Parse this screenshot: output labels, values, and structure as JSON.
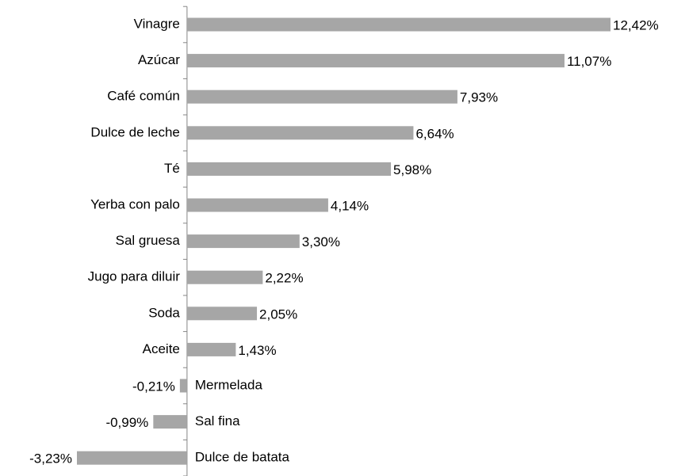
{
  "chart_data": {
    "type": "bar",
    "orientation": "horizontal",
    "color": "#a6a6a6",
    "categories": [
      "Vinagre",
      "Azúcar",
      "Café común",
      "Dulce de leche",
      "Té",
      "Yerba con palo",
      "Sal gruesa",
      "Jugo para diluir",
      "Soda",
      "Aceite",
      "Mermelada",
      "Sal fina",
      "Dulce de batata"
    ],
    "values": [
      12.42,
      11.07,
      7.93,
      6.64,
      5.98,
      4.14,
      3.3,
      2.22,
      2.05,
      1.43,
      -0.21,
      -0.99,
      -3.23
    ],
    "value_labels": [
      "12,42%",
      "11,07%",
      "7,93%",
      "6,64%",
      "5,98%",
      "4,14%",
      "3,30%",
      "2,22%",
      "2,05%",
      "1,43%",
      "-0,21%",
      "-0,99%",
      "-3,23%"
    ]
  }
}
